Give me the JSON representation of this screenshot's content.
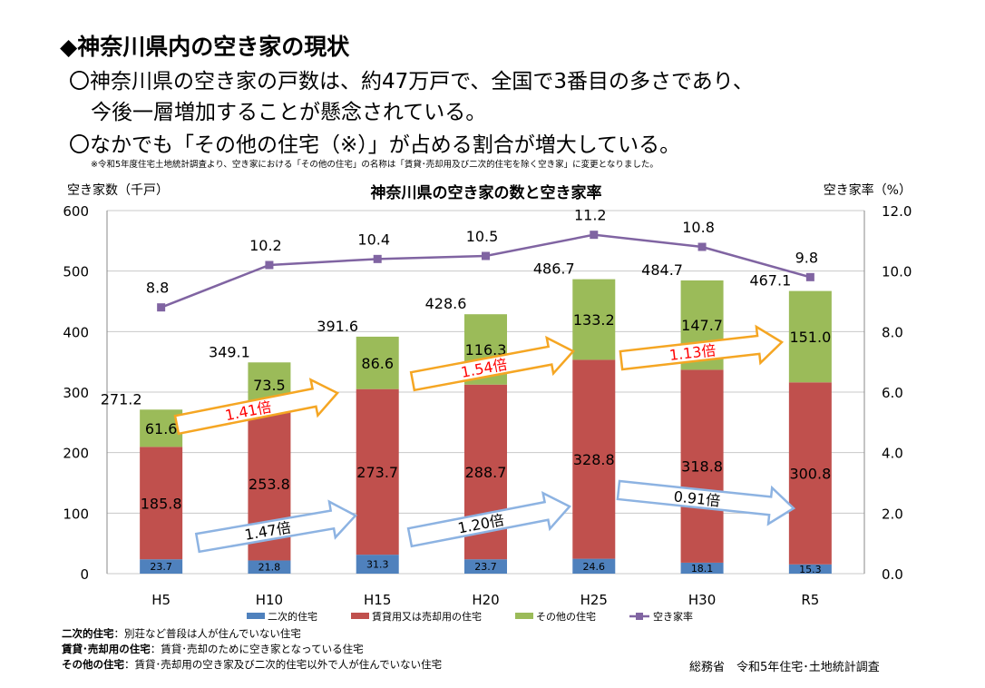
{
  "slide": {
    "heading": "◆神奈川県内の空き家の現状",
    "lines": [
      "〇神奈川県の空き家の戸数は、約47万戸で、全国で3番目の多さであり、",
      "今後一層増加することが懸念されている。",
      "〇なかでも「その他の住宅（※）」が占める割合が増大している。"
    ],
    "note": "※令和5年度住宅土地統計調査より、空き家における「その他の住宅」の名称は「賃貸･売却用及び二次的住宅を除く空き家」に変更となりました。",
    "definitions": [
      {
        "term": "二次的住宅",
        "desc": "：別荘など普段は人が住んでいない住宅"
      },
      {
        "term": "賃貸･売却用の住宅",
        "desc": "：賃貸･売却のために空き家となっている住宅"
      },
      {
        "term": "その他の住宅",
        "desc": "：賃貸･売却用の空き家及び二次的住宅以外で人が住んでいない住宅"
      }
    ],
    "source": "総務省　令和5年住宅･土地統計調査"
  },
  "chart_data": {
    "type": "bar",
    "stacked": true,
    "title": "神奈川県の空き家の数と空き家率",
    "ylabel": "空き家数（千戸）",
    "y2label": "空き家率（%）",
    "ylim": [
      0,
      600
    ],
    "yticks": [
      "0",
      "100",
      "200",
      "300",
      "400",
      "500",
      "600"
    ],
    "y2lim": [
      0,
      12
    ],
    "y2ticks": [
      "0.0",
      "2.0",
      "4.0",
      "6.0",
      "8.0",
      "10.0",
      "12.0"
    ],
    "grid": "horizontal",
    "legend": "bottom",
    "categories": [
      "H5",
      "H10",
      "H15",
      "H20",
      "H25",
      "H30",
      "R5"
    ],
    "totals": [
      "271.2",
      "349.1",
      "391.6",
      "428.6",
      "486.7",
      "484.7",
      "467.1"
    ],
    "series": [
      {
        "name": "二次的住宅",
        "color": "#4f81bd",
        "values": [
          23.7,
          21.8,
          31.3,
          23.7,
          24.6,
          18.1,
          15.3
        ]
      },
      {
        "name": "賃貸用又は売却用の住宅",
        "color": "#c0504d",
        "values": [
          185.8,
          253.8,
          273.7,
          288.7,
          328.8,
          318.8,
          300.8
        ]
      },
      {
        "name": "その他の住宅",
        "color": "#9bbb59",
        "values": [
          61.6,
          73.5,
          86.6,
          116.3,
          133.2,
          147.7,
          151.0
        ]
      }
    ],
    "line": {
      "name": "空き家率",
      "color": "#8064a2",
      "values": [
        8.8,
        10.2,
        10.4,
        10.5,
        11.2,
        10.8,
        9.8
      ]
    },
    "annotations": [
      {
        "text": "1.41倍",
        "color": "#ff0000",
        "arrow": "#f5a623"
      },
      {
        "text": "1.54倍",
        "color": "#ff0000",
        "arrow": "#f5a623"
      },
      {
        "text": "1.13倍",
        "color": "#ff0000",
        "arrow": "#f5a623"
      },
      {
        "text": "1.47倍",
        "color": "#000000",
        "arrow": "#8db3e2"
      },
      {
        "text": "1.20倍",
        "color": "#000000",
        "arrow": "#8db3e2"
      },
      {
        "text": "0.91倍",
        "color": "#000000",
        "arrow": "#8db3e2"
      }
    ]
  }
}
